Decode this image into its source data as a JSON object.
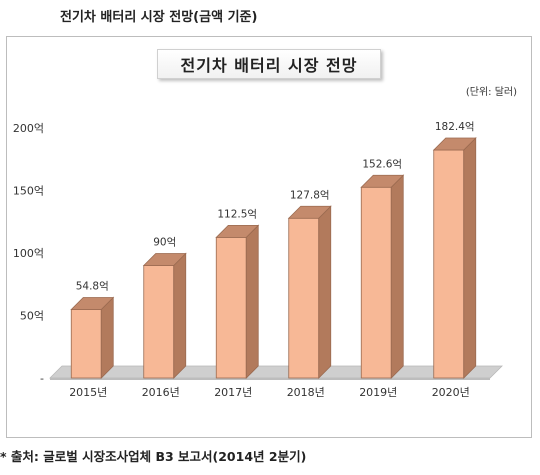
{
  "heading": "전기차 배터리 시장 전망(금액 기준)",
  "source": "* 출처: 글로벌 시장조사업체 B3 보고서(2014년 2분기)",
  "chart_data": {
    "type": "bar",
    "title": "전기차 배터리 시장 전망",
    "unit": "(단위: 달러)",
    "categories": [
      "2015년",
      "2016년",
      "2017년",
      "2018년",
      "2019년",
      "2020년"
    ],
    "values": [
      54.8,
      90,
      112.5,
      127.8,
      152.6,
      182.4
    ],
    "data_labels": [
      "54.8억",
      "90억",
      "112.5억",
      "127.8억",
      "152.6억",
      "182.4억"
    ],
    "y_ticks": [
      0,
      50,
      100,
      150,
      200
    ],
    "y_tick_labels": [
      "-",
      "50억",
      "100억",
      "150억",
      "200억"
    ],
    "ylim": [
      0,
      200
    ],
    "grid": false,
    "legend": "none",
    "bar_color": "#f7b896",
    "bar_top_color": "#c48a6c",
    "bar_side_color": "#b27a5c",
    "floor_color": "#cfcfcf"
  }
}
